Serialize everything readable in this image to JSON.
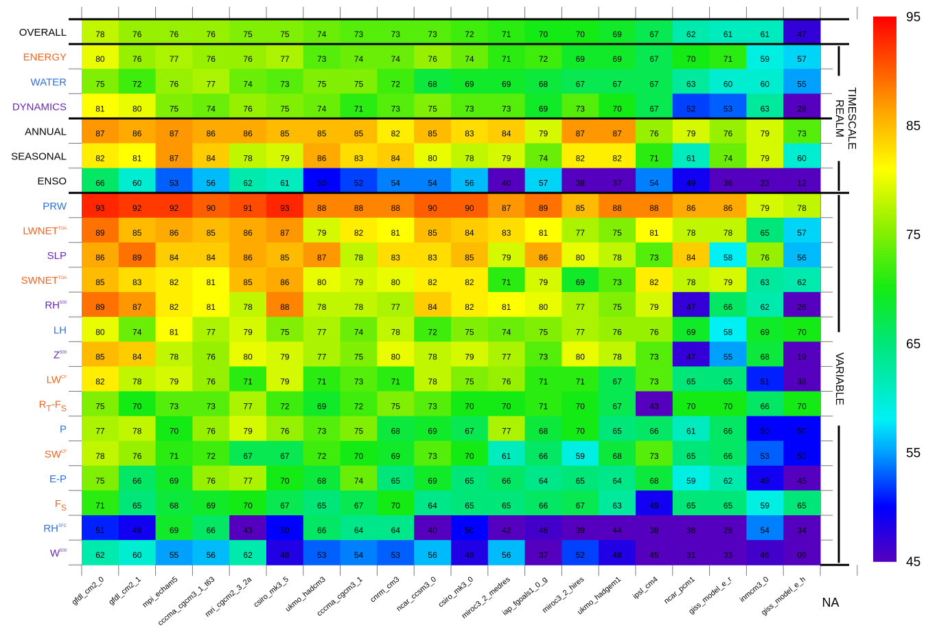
{
  "chart_data": {
    "type": "heatmap",
    "columns": [
      "gfdl_cm2_0",
      "gfdl_cm2_1",
      "mpi_echam5",
      "cccma_cgcm3_1_t63",
      "mri_cgcm2_3_2a",
      "csiro_mk3_5",
      "ukmo_hadcm3",
      "cccma_cgcm3_1",
      "cnrm_cm3",
      "ncar_ccsm3_0",
      "csiro_mk3_0",
      "miroc3_2_medres",
      "iap_fgoals1_0_g",
      "miroc3_2_hires",
      "ukmo_hadgem1",
      "ipsl_cm4",
      "ncar_pcm1",
      "giss_model_e_r",
      "inmcm3_0",
      "giss_model_e_h"
    ],
    "rows": [
      {
        "label": "OVERALL",
        "sup": "",
        "color": "#000000",
        "values": [
          78,
          76,
          76,
          76,
          75,
          75,
          74,
          73,
          73,
          73,
          72,
          71,
          70,
          70,
          69,
          67,
          62,
          61,
          61,
          47
        ]
      },
      {
        "label": "ENERGY",
        "sup": "",
        "color": "#f26522",
        "values": [
          80,
          76,
          77,
          76,
          76,
          77,
          73,
          74,
          74,
          76,
          74,
          71,
          72,
          69,
          69,
          67,
          70,
          71,
          59,
          57
        ]
      },
      {
        "label": "WATER",
        "sup": "",
        "color": "#2e6fe0",
        "values": [
          75,
          72,
          76,
          77,
          74,
          73,
          75,
          75,
          72,
          68,
          69,
          69,
          68,
          67,
          67,
          67,
          63,
          60,
          60,
          55
        ]
      },
      {
        "label": "DYNAMICS",
        "sup": "",
        "color": "#6a28b8",
        "values": [
          81,
          80,
          75,
          74,
          76,
          75,
          74,
          71,
          73,
          75,
          73,
          73,
          69,
          73,
          70,
          67,
          52,
          53,
          63,
          28
        ]
      },
      {
        "label": "ANNUAL",
        "sup": "",
        "color": "#000000",
        "values": [
          87,
          86,
          87,
          86,
          86,
          85,
          85,
          85,
          82,
          85,
          83,
          84,
          79,
          87,
          87,
          76,
          79,
          76,
          79,
          73
        ]
      },
      {
        "label": "SEASONAL",
        "sup": "",
        "color": "#000000",
        "values": [
          82,
          81,
          87,
          84,
          78,
          79,
          86,
          83,
          84,
          80,
          78,
          79,
          74,
          82,
          82,
          71,
          61,
          74,
          79,
          60
        ]
      },
      {
        "label": "ENSO",
        "sup": "",
        "color": "#000000",
        "values": [
          66,
          60,
          53,
          56,
          62,
          61,
          50,
          52,
          54,
          54,
          56,
          40,
          57,
          38,
          37,
          54,
          49,
          36,
          23,
          12
        ]
      },
      {
        "label": "PRW",
        "sup": "",
        "color": "#2e6fe0",
        "values": [
          93,
          92,
          92,
          90,
          91,
          93,
          88,
          88,
          88,
          90,
          90,
          87,
          89,
          85,
          88,
          88,
          86,
          86,
          79,
          78
        ]
      },
      {
        "label": "LWNET",
        "sup": "TOA",
        "color": "#f26522",
        "values": [
          89,
          85,
          86,
          85,
          86,
          87,
          79,
          82,
          81,
          85,
          84,
          83,
          81,
          77,
          75,
          81,
          78,
          78,
          65,
          57
        ]
      },
      {
        "label": "SLP",
        "sup": "",
        "color": "#6a28b8",
        "values": [
          86,
          89,
          84,
          84,
          86,
          85,
          87,
          78,
          83,
          83,
          85,
          79,
          86,
          80,
          78,
          73,
          84,
          58,
          76,
          56
        ]
      },
      {
        "label": "SWNET",
        "sup": "TOA",
        "color": "#f26522",
        "values": [
          85,
          83,
          82,
          81,
          85,
          86,
          80,
          79,
          80,
          82,
          82,
          71,
          79,
          69,
          73,
          82,
          78,
          79,
          63,
          62
        ]
      },
      {
        "label": "RH",
        "sup": "500",
        "color": "#6a28b8",
        "values": [
          89,
          87,
          82,
          81,
          78,
          88,
          78,
          78,
          77,
          84,
          82,
          81,
          80,
          77,
          75,
          79,
          47,
          66,
          62,
          26
        ]
      },
      {
        "label": "LH",
        "sup": "",
        "color": "#2e6fe0",
        "values": [
          80,
          74,
          81,
          77,
          79,
          75,
          77,
          74,
          78,
          72,
          75,
          74,
          75,
          77,
          76,
          76,
          69,
          58,
          69,
          70
        ]
      },
      {
        "label": "Z",
        "sup": "500",
        "color": "#6a28b8",
        "values": [
          85,
          84,
          78,
          76,
          80,
          79,
          77,
          75,
          80,
          78,
          79,
          77,
          73,
          80,
          78,
          73,
          47,
          55,
          68,
          19
        ]
      },
      {
        "label": "LW",
        "sup": "CF",
        "color": "#f26522",
        "values": [
          82,
          78,
          79,
          76,
          71,
          79,
          71,
          73,
          71,
          78,
          75,
          76,
          71,
          71,
          67,
          73,
          65,
          65,
          51,
          38
        ]
      },
      {
        "label": "RT-FS",
        "sup": "",
        "color": "#f26522",
        "values": [
          75,
          70,
          73,
          73,
          77,
          72,
          69,
          72,
          75,
          73,
          70,
          70,
          71,
          70,
          67,
          43,
          70,
          70,
          66,
          70
        ]
      },
      {
        "label": "P",
        "sup": "",
        "color": "#2e6fe0",
        "values": [
          77,
          78,
          70,
          76,
          79,
          76,
          73,
          75,
          68,
          69,
          67,
          77,
          68,
          70,
          65,
          66,
          61,
          66,
          50,
          50
        ]
      },
      {
        "label": "SW",
        "sup": "CF",
        "color": "#f26522",
        "values": [
          78,
          76,
          71,
          72,
          67,
          67,
          72,
          70,
          69,
          73,
          70,
          61,
          66,
          59,
          68,
          73,
          65,
          66,
          53,
          50
        ]
      },
      {
        "label": "E-P",
        "sup": "",
        "color": "#2e6fe0",
        "values": [
          75,
          66,
          69,
          76,
          77,
          70,
          68,
          74,
          65,
          69,
          65,
          66,
          64,
          65,
          64,
          68,
          59,
          62,
          49,
          45
        ]
      },
      {
        "label": "FS",
        "sup": "",
        "color": "#f26522",
        "values": [
          71,
          65,
          68,
          69,
          70,
          67,
          65,
          67,
          70,
          64,
          65,
          65,
          66,
          67,
          63,
          49,
          65,
          65,
          59,
          65
        ]
      },
      {
        "label": "RH",
        "sup": "SFC",
        "color": "#2e6fe0",
        "values": [
          51,
          49,
          69,
          66,
          43,
          50,
          66,
          64,
          64,
          40,
          50,
          42,
          46,
          39,
          44,
          38,
          38,
          28,
          54,
          34
        ]
      },
      {
        "label": "W",
        "sup": "500",
        "color": "#6a28b8",
        "values": [
          62,
          60,
          55,
          56,
          62,
          48,
          53,
          54,
          53,
          56,
          48,
          56,
          37,
          52,
          48,
          45,
          31,
          33,
          46,
          "09"
        ]
      }
    ],
    "groups": [
      {
        "label": "REALM",
        "rows": [
          1,
          3
        ]
      },
      {
        "label": "TIMESCALE",
        "rows": [
          4,
          6
        ]
      },
      {
        "label": "VARIABLE",
        "rows": [
          7,
          21
        ]
      }
    ],
    "extra_column_label": "NA",
    "colorbar": {
      "min": 45,
      "max": 95,
      "ticks": [
        95,
        85,
        75,
        65,
        55,
        45
      ]
    }
  }
}
